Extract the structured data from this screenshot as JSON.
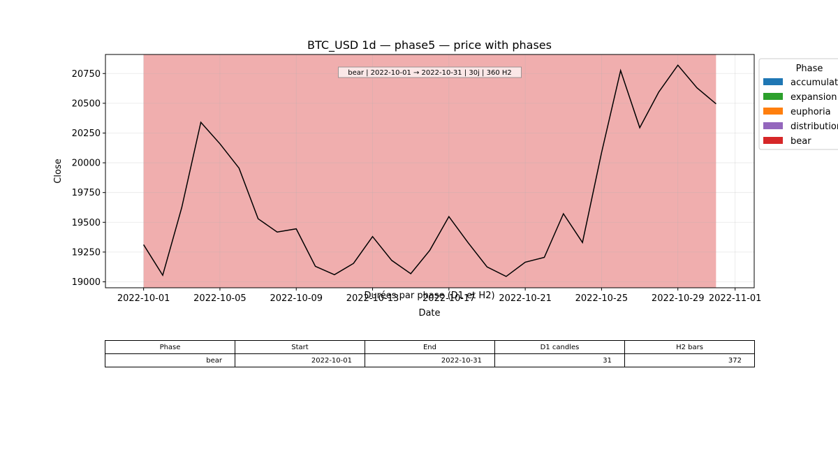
{
  "figure": {
    "title": "BTC_USD 1d — phase5 — price with phases",
    "table_title": "Durées par phase (D1 et H2)"
  },
  "chart_data": {
    "type": "line",
    "title": "BTC_USD 1d — phase5 — price with phases",
    "xlabel": "Date",
    "ylabel": "Close",
    "x_ticks": [
      "2022-10-01",
      "2022-10-05",
      "2022-10-09",
      "2022-10-13",
      "2022-10-17",
      "2022-10-21",
      "2022-10-25",
      "2022-10-29",
      "2022-11-01"
    ],
    "y_ticks": [
      19000,
      19250,
      19500,
      19750,
      20000,
      20250,
      20500,
      20750
    ],
    "x_range": [
      "2022-09-29",
      "2022-11-02"
    ],
    "ylim": [
      18950,
      20910
    ],
    "grid": true,
    "series": [
      {
        "color": "#000000",
        "points": [
          [
            "2022-10-01",
            19312
          ],
          [
            "2022-10-02",
            19055
          ],
          [
            "2022-10-03",
            19625
          ],
          [
            "2022-10-04",
            20340
          ],
          [
            "2022-10-05",
            20160
          ],
          [
            "2022-10-06",
            19955
          ],
          [
            "2022-10-07",
            19530
          ],
          [
            "2022-10-08",
            19418
          ],
          [
            "2022-10-09",
            19445
          ],
          [
            "2022-10-10",
            19130
          ],
          [
            "2022-10-11",
            19060
          ],
          [
            "2022-10-12",
            19155
          ],
          [
            "2022-10-13",
            19380
          ],
          [
            "2022-10-14",
            19180
          ],
          [
            "2022-10-15",
            19068
          ],
          [
            "2022-10-16",
            19265
          ],
          [
            "2022-10-17",
            19548
          ],
          [
            "2022-10-18",
            19330
          ],
          [
            "2022-10-19",
            19125
          ],
          [
            "2022-10-20",
            19045
          ],
          [
            "2022-10-21",
            19165
          ],
          [
            "2022-10-22",
            19205
          ],
          [
            "2022-10-23",
            19572
          ],
          [
            "2022-10-24",
            19330
          ],
          [
            "2022-10-25",
            20085
          ],
          [
            "2022-10-26",
            20775
          ],
          [
            "2022-10-27",
            20295
          ],
          [
            "2022-10-28",
            20595
          ],
          [
            "2022-10-29",
            20820
          ],
          [
            "2022-10-30",
            20630
          ],
          [
            "2022-10-31",
            20495
          ]
        ]
      }
    ],
    "phase_spans": [
      {
        "phase": "bear",
        "start": "2022-10-01",
        "end": "2022-10-31",
        "color": "#d62728",
        "label": "bear | 2022-10-01 → 2022-10-31 | 30j | 360 H2"
      }
    ],
    "legend": {
      "title": "Phase",
      "placement": "outside-top-right",
      "entries": [
        {
          "label": "accumulation",
          "color": "#1f77b4"
        },
        {
          "label": "expansion",
          "color": "#2ca02c"
        },
        {
          "label": "euphoria",
          "color": "#ff7f0e"
        },
        {
          "label": "distribution",
          "color": "#9467bd"
        },
        {
          "label": "bear",
          "color": "#d62728"
        }
      ]
    }
  },
  "table": {
    "headers": [
      "Phase",
      "Start",
      "End",
      "D1 candles",
      "H2 bars"
    ],
    "rows": [
      [
        "bear",
        "2022-10-01",
        "2022-10-31",
        "31",
        "372"
      ]
    ]
  }
}
